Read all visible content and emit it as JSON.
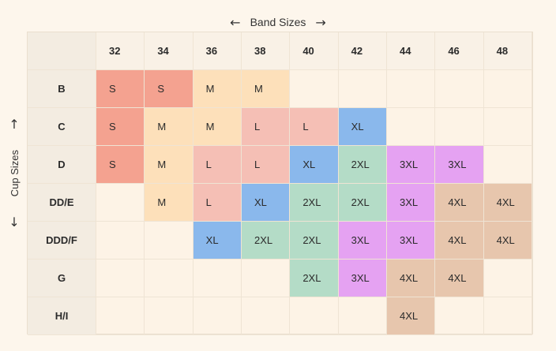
{
  "band_axis": {
    "label": "Band Sizes",
    "left_arrow": "←",
    "right_arrow": "→"
  },
  "cup_axis": {
    "label": "Cup Sizes",
    "up_arrow": "↑",
    "down_arrow": "↓"
  },
  "bands": [
    "32",
    "34",
    "36",
    "38",
    "40",
    "42",
    "44",
    "46",
    "48"
  ],
  "cups": [
    "B",
    "C",
    "D",
    "DD/E",
    "DDD/F",
    "G",
    "H/I"
  ],
  "sizes": [
    [
      "S",
      "S",
      "M",
      "M",
      "",
      "",
      "",
      "",
      ""
    ],
    [
      "S",
      "M",
      "M",
      "L",
      "L",
      "XL",
      "",
      "",
      ""
    ],
    [
      "S",
      "M",
      "L",
      "L",
      "XL",
      "2XL",
      "3XL",
      "3XL",
      ""
    ],
    [
      "",
      "M",
      "L",
      "XL",
      "2XL",
      "2XL",
      "3XL",
      "4XL",
      "4XL"
    ],
    [
      "",
      "",
      "XL",
      "2XL",
      "2XL",
      "3XL",
      "3XL",
      "4XL",
      "4XL"
    ],
    [
      "",
      "",
      "",
      "",
      "2XL",
      "3XL",
      "4XL",
      "4XL",
      ""
    ],
    [
      "",
      "",
      "",
      "",
      "",
      "",
      "4XL",
      "",
      ""
    ]
  ],
  "size_colors": {
    "S": "#f4a290",
    "M": "#fde0ba",
    "L": "#f5bfb5",
    "XL": "#8ab8ec",
    "2XL": "#b4dcc7",
    "3XL": "#e5a2f2",
    "4XL": "#e7c6ad"
  }
}
